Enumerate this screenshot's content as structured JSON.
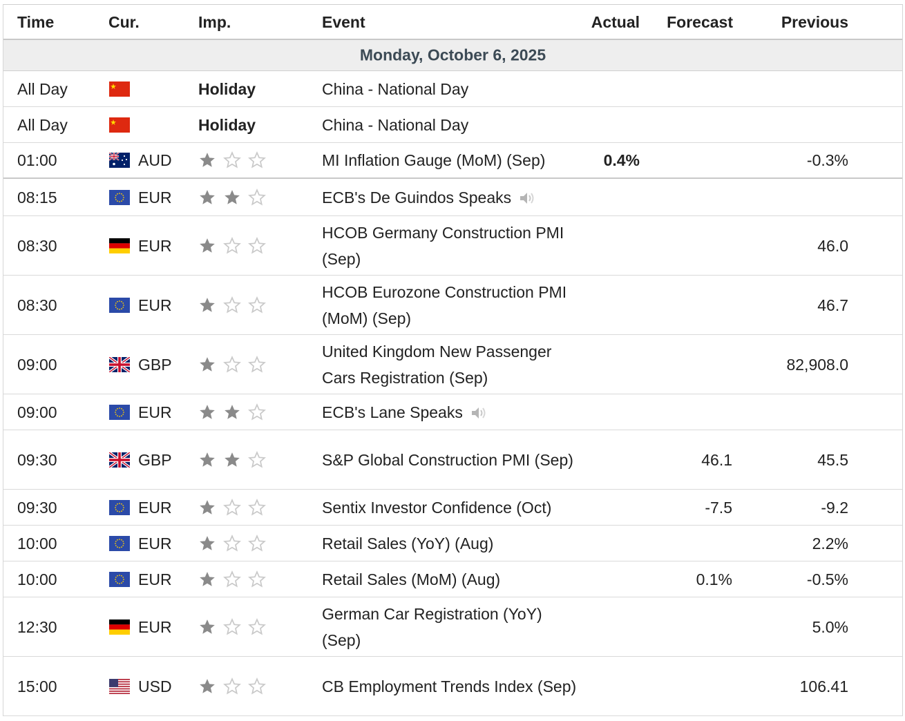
{
  "header": {
    "time": "Time",
    "currency": "Cur.",
    "importance": "Imp.",
    "event": "Event",
    "actual": "Actual",
    "forecast": "Forecast",
    "previous": "Previous"
  },
  "date_label": "Monday, October 6, 2025",
  "colors": {
    "star_filled": "#8a8a8a",
    "star_empty": "#c9c9c9",
    "date_bg": "#eeeeee",
    "date_text": "#3c4a55"
  },
  "rows": [
    {
      "time": "All Day",
      "flag": "china-flag-icon",
      "currency": "",
      "importance": "Holiday",
      "event": "China - National Day",
      "actual": "",
      "forecast": "",
      "previous": ""
    },
    {
      "time": "All Day",
      "flag": "china-flag-icon",
      "currency": "",
      "importance": "Holiday",
      "event": "China - National Day",
      "actual": "",
      "forecast": "",
      "previous": ""
    },
    {
      "time": "01:00",
      "flag": "australia-flag-icon",
      "currency": "AUD",
      "stars": 1,
      "event": "MI Inflation Gauge (MoM) (Sep)",
      "actual": "0.4%",
      "forecast": "",
      "previous": "-0.3%"
    },
    {
      "time": "08:15",
      "flag": "eu-flag-icon",
      "currency": "EUR",
      "stars": 2,
      "event": "ECB's De Guindos Speaks",
      "speech": true,
      "actual": "",
      "forecast": "",
      "previous": ""
    },
    {
      "time": "08:30",
      "flag": "germany-flag-icon",
      "currency": "EUR",
      "stars": 1,
      "event": "HCOB Germany Construction PMI (Sep)",
      "actual": "",
      "forecast": "",
      "previous": "46.0"
    },
    {
      "time": "08:30",
      "flag": "eu-flag-icon",
      "currency": "EUR",
      "stars": 1,
      "event": "HCOB Eurozone Construction PMI (MoM) (Sep)",
      "actual": "",
      "forecast": "",
      "previous": "46.7"
    },
    {
      "time": "09:00",
      "flag": "uk-flag-icon",
      "currency": "GBP",
      "stars": 1,
      "event": "United Kingdom New Passenger Cars Registration (Sep)",
      "actual": "",
      "forecast": "",
      "previous": "82,908.0"
    },
    {
      "time": "09:00",
      "flag": "eu-flag-icon",
      "currency": "EUR",
      "stars": 2,
      "event": "ECB's Lane Speaks",
      "speech": true,
      "actual": "",
      "forecast": "",
      "previous": ""
    },
    {
      "time": "09:30",
      "flag": "uk-flag-icon",
      "currency": "GBP",
      "stars": 2,
      "event": "S&P Global Construction PMI (Sep)",
      "actual": "",
      "forecast": "46.1",
      "previous": "45.5"
    },
    {
      "time": "09:30",
      "flag": "eu-flag-icon",
      "currency": "EUR",
      "stars": 1,
      "event": "Sentix Investor Confidence (Oct)",
      "actual": "",
      "forecast": "-7.5",
      "previous": "-9.2"
    },
    {
      "time": "10:00",
      "flag": "eu-flag-icon",
      "currency": "EUR",
      "stars": 1,
      "event": "Retail Sales (YoY) (Aug)",
      "actual": "",
      "forecast": "",
      "previous": "2.2%"
    },
    {
      "time": "10:00",
      "flag": "eu-flag-icon",
      "currency": "EUR",
      "stars": 1,
      "event": "Retail Sales (MoM) (Aug)",
      "actual": "",
      "forecast": "0.1%",
      "previous": "-0.5%"
    },
    {
      "time": "12:30",
      "flag": "germany-flag-icon",
      "currency": "EUR",
      "stars": 1,
      "event": "German Car Registration (YoY) (Sep)",
      "actual": "",
      "forecast": "",
      "previous": "5.0%"
    },
    {
      "time": "15:00",
      "flag": "us-flag-icon",
      "currency": "USD",
      "stars": 1,
      "event": "CB Employment Trends Index (Sep)",
      "actual": "",
      "forecast": "",
      "previous": "106.41"
    }
  ]
}
